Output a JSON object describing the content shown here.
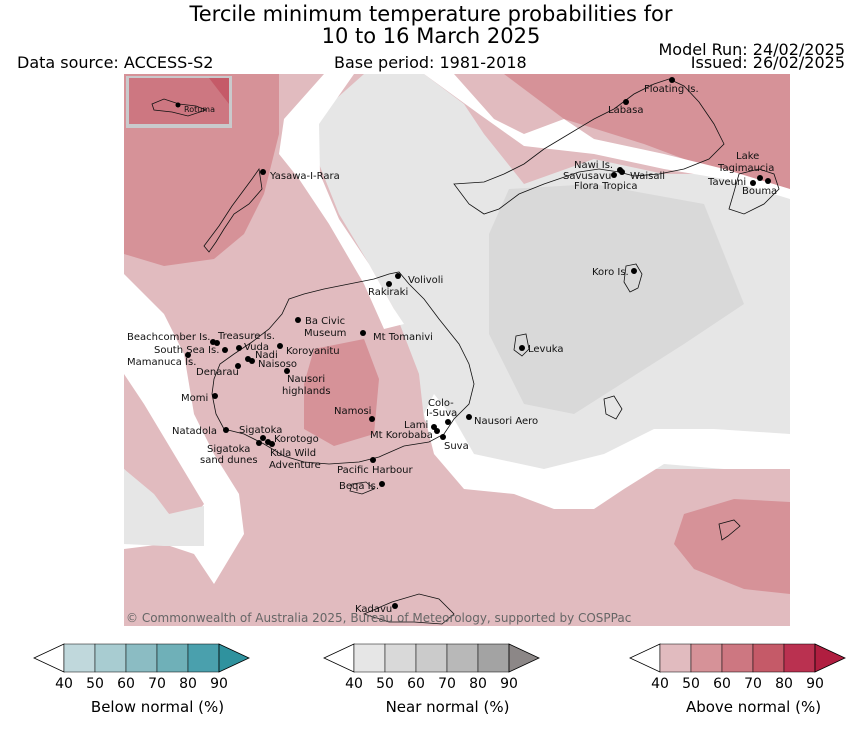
{
  "header": {
    "title_line1": "Tercile minimum temperature probabilities for",
    "title_line2": "10 to 16 March 2025",
    "data_source": "Data source: ACCESS-S2",
    "base_period": "Base period: 1981-2018",
    "model_run": "Model Run: 24/02/2025",
    "issued": "Issued: 26/02/2025"
  },
  "map": {
    "inset_label": "Rotuma",
    "copyright": "© Commonwealth of Australia 2025, Bureau of Meteorology, supported by COSPPac",
    "places": [
      {
        "name": "Floating Is."
      },
      {
        "name": "Labasa"
      },
      {
        "name": "Yasawa-I-Rara"
      },
      {
        "name": "Nawi Is."
      },
      {
        "name": "Savusavu"
      },
      {
        "name": "Waisali"
      },
      {
        "name": "Flora Tropica"
      },
      {
        "name": "Lake"
      },
      {
        "name": "Tagimaucia"
      },
      {
        "name": "Taveuni"
      },
      {
        "name": "Bouma"
      },
      {
        "name": "Koro Is."
      },
      {
        "name": "Volivoli"
      },
      {
        "name": "Rakiraki"
      },
      {
        "name": "Ba Civic"
      },
      {
        "name": "Museum"
      },
      {
        "name": "Mt Tomanivi"
      },
      {
        "name": "Beachcomber Is."
      },
      {
        "name": "Treasure Is."
      },
      {
        "name": "South Sea Is."
      },
      {
        "name": "Vuda"
      },
      {
        "name": "Koroyanitu"
      },
      {
        "name": "Nadi"
      },
      {
        "name": "Mamanuca Is."
      },
      {
        "name": "Naisoso"
      },
      {
        "name": "Denarau"
      },
      {
        "name": "Nausori"
      },
      {
        "name": "highlands"
      },
      {
        "name": "Levuka"
      },
      {
        "name": "Momi"
      },
      {
        "name": "Namosi"
      },
      {
        "name": "Colo-"
      },
      {
        "name": "I-Suva"
      },
      {
        "name": "Lami"
      },
      {
        "name": "Nausori Aero"
      },
      {
        "name": "Natadola"
      },
      {
        "name": "Sigatoka"
      },
      {
        "name": "Mt Korobaba"
      },
      {
        "name": "Korotogo"
      },
      {
        "name": "Suva"
      },
      {
        "name": "Sigatoka"
      },
      {
        "name": "sand dunes"
      },
      {
        "name": "Kula Wild"
      },
      {
        "name": "Adventure"
      },
      {
        "name": "Pacific Harbour"
      },
      {
        "name": "Beqa Is."
      },
      {
        "name": "Kadavu"
      }
    ]
  },
  "legend": {
    "ticks": [
      "40",
      "50",
      "60",
      "70",
      "80",
      "90"
    ],
    "bars": [
      {
        "title": "Below normal (%)",
        "colors": [
          "#c0d8dc",
          "#a8ccd1",
          "#8bbcc3",
          "#6fb0b8",
          "#4aa0ad",
          "#2f929e"
        ]
      },
      {
        "title": "Near normal (%)",
        "colors": [
          "#e6e6e6",
          "#d9d9d9",
          "#cbcbcb",
          "#b8b8b8",
          "#a3a3a3",
          "#8c8787"
        ]
      },
      {
        "title": "Above normal (%)",
        "colors": [
          "#e1bbbf",
          "#d69298",
          "#cd7781",
          "#c55a68",
          "#ba3150",
          "#b01e40"
        ]
      }
    ]
  }
}
